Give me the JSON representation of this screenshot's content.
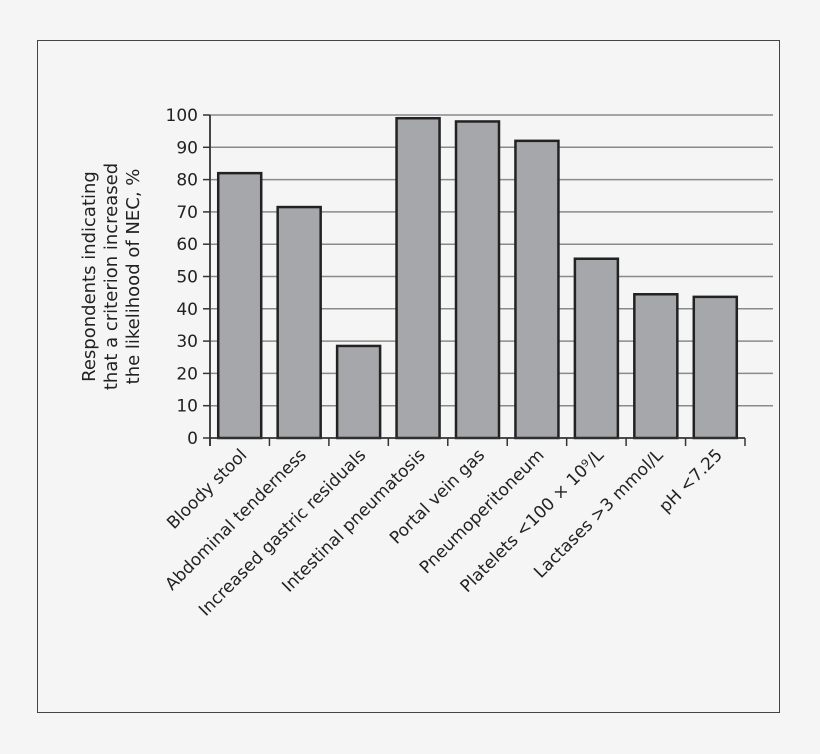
{
  "chart_data": {
    "type": "bar",
    "title": "",
    "xlabel": "",
    "ylabel": [
      "Respondents indicating",
      "that a criterion increased",
      "the likelihood of NEC, %"
    ],
    "ylim": [
      0,
      100
    ],
    "yticks": [
      0,
      10,
      20,
      30,
      40,
      50,
      60,
      70,
      80,
      90,
      100
    ],
    "grid": "horizontal",
    "legend": null,
    "categories": [
      "Bloody stool",
      "Abdominal tenderness",
      "Increased gastric residuals",
      "Intestinal pneumatosis",
      "Portal vein gas",
      "Pneumoperitoneum",
      "Platelets <100 × 10⁹/L",
      "Lactases >3 mmol/L",
      "pH <7.25"
    ],
    "values": [
      82,
      71.5,
      28.5,
      99,
      98,
      92,
      55.5,
      44.5,
      43.7
    ],
    "colors": {
      "bar_fill": "#a6a7aa",
      "bar_stroke": "#222222",
      "grid": "#8a8a8a",
      "axis": "#333333",
      "background": "#f5f5f5"
    }
  }
}
